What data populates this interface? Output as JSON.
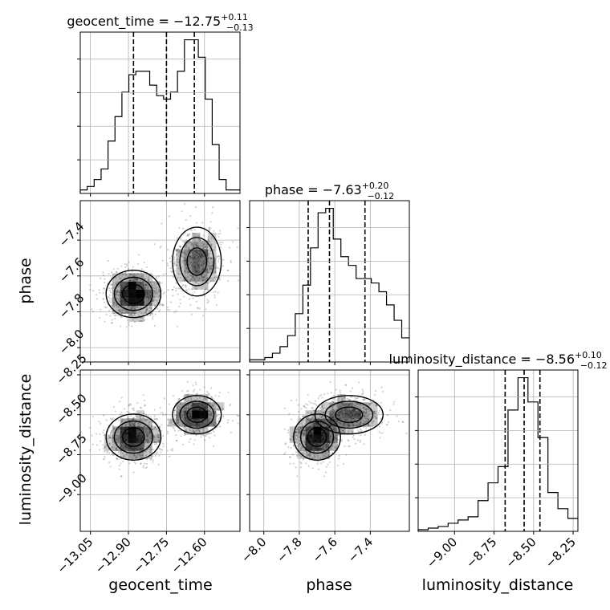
{
  "chart_data": {
    "type": "corner",
    "parameters": [
      {
        "name": "geocent_time",
        "label": "geocent_time",
        "median": -12.75,
        "plus": 0.11,
        "minus": 0.13,
        "range": [
          -13.09,
          -12.46
        ],
        "ticks": [
          -13.05,
          -12.9,
          -12.75,
          -12.6
        ],
        "tick_labels": [
          "−13.05",
          "−12.90",
          "−12.75",
          "−12.60"
        ],
        "quantiles": [
          -12.88,
          -12.75,
          -12.64
        ]
      },
      {
        "name": "phase",
        "label": "phase",
        "median": -7.63,
        "plus": 0.2,
        "minus": 0.12,
        "range": [
          -8.08,
          -7.18
        ],
        "ticks": [
          -8.0,
          -7.8,
          -7.6,
          -7.4
        ],
        "tick_labels": [
          "−8.0",
          "−7.8",
          "−7.6",
          "−7.4"
        ],
        "quantiles": [
          -7.75,
          -7.63,
          -7.43
        ]
      },
      {
        "name": "luminosity_distance",
        "label": "luminosity_distance",
        "median": -8.56,
        "plus": 0.1,
        "minus": 0.12,
        "range": [
          -9.23,
          -8.22
        ],
        "ticks": [
          -9.0,
          -8.75,
          -8.5,
          -8.25
        ],
        "tick_labels": [
          "−9.00",
          "−8.75",
          "−8.50",
          "−8.25"
        ],
        "quantiles": [
          -8.68,
          -8.56,
          -8.46
        ]
      }
    ],
    "titles": [
      {
        "base": "geocent_time = −12.75",
        "sup": "+0.11",
        "sub": "−0.13"
      },
      {
        "base": "phase = −7.63",
        "sup": "+0.20",
        "sub": "−0.12"
      },
      {
        "base": "luminosity_distance = −8.56",
        "sup": "+0.10",
        "sub": "−0.12"
      }
    ],
    "histograms": [
      [
        1,
        2,
        4,
        7,
        15,
        22,
        29,
        34,
        35,
        35,
        31,
        28,
        27,
        29,
        35,
        44,
        44,
        39,
        27,
        14,
        4,
        1,
        1
      ],
      [
        1,
        1,
        2,
        4,
        7,
        12,
        22,
        35,
        52,
        68,
        70,
        56,
        48,
        44,
        38,
        38,
        36,
        32,
        26,
        19,
        11
      ],
      [
        1,
        2,
        3,
        5,
        7,
        9,
        19,
        30,
        40,
        75,
        95,
        80,
        58,
        24,
        14,
        8
      ]
    ],
    "grid": true,
    "contour_levels": [
      "0.5σ",
      "1σ",
      "1.5σ",
      "2σ"
    ]
  }
}
